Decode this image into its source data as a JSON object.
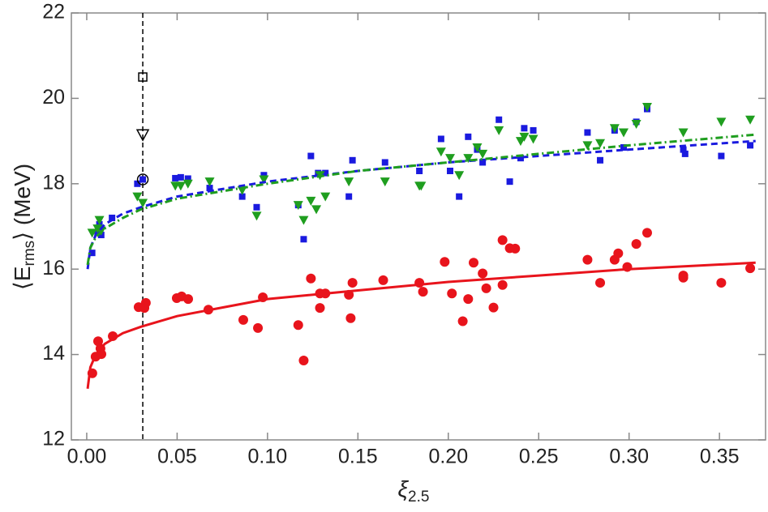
{
  "chart_data": {
    "type": "scatter",
    "xlabel": [
      "ξ",
      "2.5"
    ],
    "ylabel": [
      "⟨E",
      "rms",
      "⟩ (MeV)"
    ],
    "xlim": [
      -0.0085,
      0.3755
    ],
    "ylim": [
      12,
      22
    ],
    "xticks": [
      {
        "value": 0,
        "label": "0.00"
      },
      {
        "value": 0.05,
        "label": "0.05"
      },
      {
        "value": 0.1,
        "label": "0.10"
      },
      {
        "value": 0.15,
        "label": "0.15"
      },
      {
        "value": 0.2,
        "label": "0.20"
      },
      {
        "value": 0.25,
        "label": "0.25"
      },
      {
        "value": 0.3,
        "label": "0.30"
      },
      {
        "value": 0.35,
        "label": "0.35"
      }
    ],
    "yticks": [
      12,
      14,
      16,
      18,
      20,
      22
    ],
    "vline": 0.031,
    "series": [
      {
        "color": "#e8141c",
        "marker": "circle",
        "x": [
          0.0031,
          0.0049,
          0.0063,
          0.0076,
          0.0081,
          0.0144,
          0.0287,
          0.0319,
          0.0327,
          0.0498,
          0.0525,
          0.0561,
          0.0673,
          0.0866,
          0.0947,
          0.0974,
          0.117,
          0.12,
          0.124,
          0.129,
          0.129,
          0.132,
          0.145,
          0.146,
          0.147,
          0.164,
          0.184,
          0.186,
          0.198,
          0.202,
          0.208,
          0.211,
          0.214,
          0.219,
          0.221,
          0.225,
          0.23,
          0.23,
          0.234,
          0.237,
          0.277,
          0.284,
          0.292,
          0.294,
          0.299,
          0.304,
          0.31,
          0.33,
          0.33,
          0.351,
          0.367
        ],
        "values": [
          13.56,
          13.95,
          14.31,
          14.14,
          14.01,
          14.43,
          15.11,
          15.09,
          15.21,
          15.32,
          15.36,
          15.3,
          15.05,
          14.81,
          14.62,
          15.34,
          14.69,
          13.86,
          15.78,
          15.09,
          15.43,
          15.43,
          15.4,
          14.85,
          15.68,
          15.74,
          15.68,
          15.47,
          16.17,
          15.43,
          14.78,
          15.3,
          16.15,
          15.9,
          15.55,
          15.1,
          16.68,
          15.63,
          16.49,
          16.48,
          16.22,
          15.68,
          16.22,
          16.37,
          16.05,
          16.59,
          16.85,
          15.85,
          15.8,
          15.68,
          16.02
        ]
      },
      {
        "color": "#1a1adf",
        "marker": "square",
        "x": [
          0.003,
          0.006,
          0.007,
          0.008,
          0.014,
          0.028,
          0.031,
          0.049,
          0.052,
          0.056,
          0.068,
          0.086,
          0.094,
          0.098,
          0.117,
          0.12,
          0.124,
          0.128,
          0.132,
          0.145,
          0.147,
          0.165,
          0.184,
          0.196,
          0.201,
          0.206,
          0.211,
          0.216,
          0.219,
          0.228,
          0.234,
          0.24,
          0.242,
          0.247,
          0.277,
          0.284,
          0.292,
          0.297,
          0.304,
          0.31,
          0.33,
          0.331,
          0.351,
          0.367
        ],
        "values": [
          16.38,
          16.85,
          17.05,
          16.8,
          17.2,
          18.0,
          18.1,
          18.13,
          18.15,
          18.12,
          17.9,
          17.7,
          17.45,
          18.2,
          17.5,
          16.7,
          18.65,
          18.25,
          18.25,
          17.7,
          18.55,
          18.5,
          18.3,
          19.05,
          18.3,
          17.7,
          19.1,
          18.8,
          18.5,
          19.5,
          18.05,
          18.6,
          19.3,
          19.25,
          19.2,
          18.55,
          19.25,
          18.85,
          19.45,
          19.75,
          18.8,
          18.7,
          18.65,
          18.9
        ]
      },
      {
        "color": "#1f9e1f",
        "marker": "triangle-down",
        "x": [
          0.003,
          0.006,
          0.007,
          0.008,
          0.028,
          0.031,
          0.049,
          0.052,
          0.056,
          0.068,
          0.086,
          0.094,
          0.098,
          0.117,
          0.12,
          0.124,
          0.127,
          0.129,
          0.132,
          0.145,
          0.165,
          0.184,
          0.185,
          0.196,
          0.201,
          0.206,
          0.211,
          0.216,
          0.219,
          0.228,
          0.24,
          0.242,
          0.247,
          0.277,
          0.284,
          0.292,
          0.297,
          0.304,
          0.31,
          0.33,
          0.351,
          0.367
        ],
        "values": [
          16.85,
          16.95,
          17.15,
          16.9,
          17.7,
          17.55,
          17.95,
          17.95,
          18.0,
          18.05,
          17.85,
          17.25,
          18.1,
          17.5,
          17.15,
          17.6,
          17.4,
          18.2,
          17.7,
          18.05,
          18.05,
          17.95,
          17.95,
          18.75,
          18.6,
          18.2,
          18.6,
          18.85,
          18.7,
          19.25,
          19.0,
          19.1,
          19.05,
          18.9,
          18.95,
          19.3,
          19.2,
          19.4,
          19.8,
          19.2,
          19.45,
          19.5
        ]
      },
      {
        "color": "#000000",
        "marker": "open-square",
        "x": [
          0.031
        ],
        "values": [
          20.5
        ]
      },
      {
        "color": "#000000",
        "marker": "open-triangle-down",
        "x": [
          0.031
        ],
        "values": [
          19.15
        ]
      },
      {
        "color": "#000000",
        "marker": "open-circle",
        "x": [
          0.031
        ],
        "values": [
          18.1
        ]
      }
    ],
    "lines": [
      {
        "color": "#e8141c",
        "dash": "solid",
        "x": [
          0.0005,
          0.002,
          0.005,
          0.01,
          0.02,
          0.03,
          0.05,
          0.075,
          0.1,
          0.15,
          0.2,
          0.25,
          0.3,
          0.37
        ],
        "values": [
          13.2,
          13.7,
          14.0,
          14.25,
          14.5,
          14.65,
          14.9,
          15.1,
          15.3,
          15.5,
          15.7,
          15.85,
          16.0,
          16.15
        ]
      },
      {
        "color": "#1a1adf",
        "dash": "dashed",
        "x": [
          0.0005,
          0.002,
          0.005,
          0.01,
          0.02,
          0.03,
          0.05,
          0.1,
          0.15,
          0.2,
          0.25,
          0.3,
          0.37
        ],
        "values": [
          16.0,
          16.5,
          16.8,
          17.05,
          17.3,
          17.45,
          17.7,
          18.05,
          18.3,
          18.5,
          18.65,
          18.8,
          19.0
        ]
      },
      {
        "color": "#1f9e1f",
        "dash": "dashdot",
        "x": [
          0.0005,
          0.002,
          0.005,
          0.01,
          0.02,
          0.03,
          0.05,
          0.1,
          0.15,
          0.2,
          0.25,
          0.3,
          0.37
        ],
        "values": [
          16.1,
          16.5,
          16.75,
          16.95,
          17.2,
          17.4,
          17.65,
          18.0,
          18.3,
          18.5,
          18.7,
          18.9,
          19.15
        ]
      }
    ]
  }
}
